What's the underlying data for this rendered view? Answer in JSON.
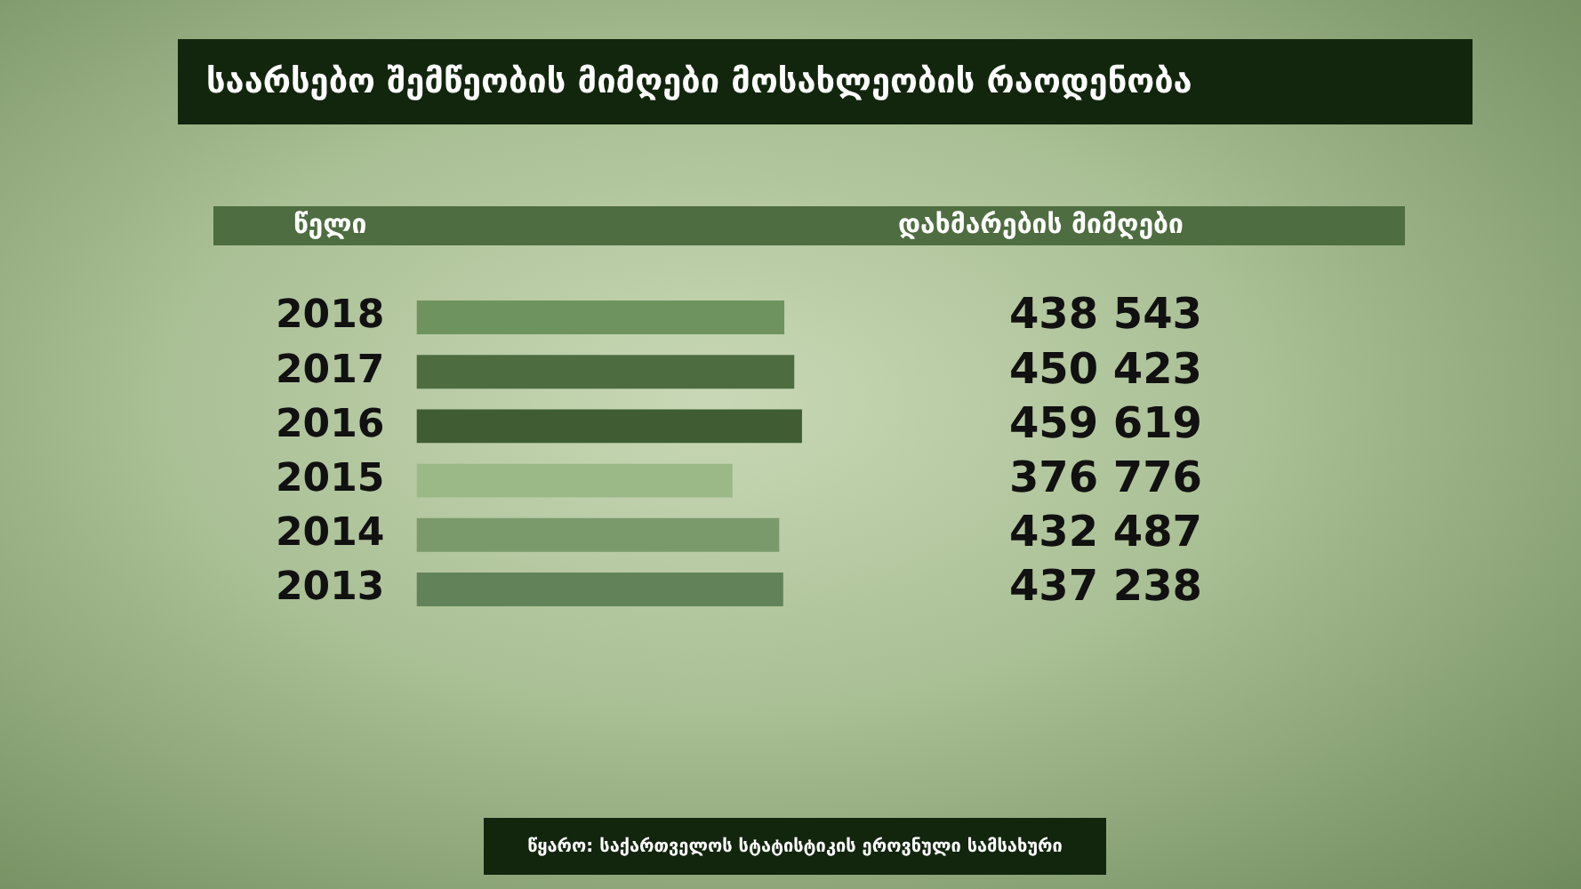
{
  "chart_data": {
    "type": "bar",
    "orientation": "horizontal",
    "title": "საარსებო შემწეობის მიმღები მოსახლეობის რაოდენობა",
    "ylabel": "წელი",
    "xlabel": "დახმარების მიმღები",
    "categories": [
      "2018",
      "2017",
      "2016",
      "2015",
      "2014",
      "2013"
    ],
    "values": [
      438543,
      450423,
      459619,
      376776,
      432487,
      437238
    ],
    "value_labels": [
      "438 543",
      "450 423",
      "459 619",
      "376 776",
      "432 487",
      "437 238"
    ],
    "colors": [
      "#6f935f",
      "#4d6d40",
      "#3f5c33",
      "#9bb987",
      "#7b9a6c",
      "#62835a"
    ],
    "annotations": [
      "წყარო: საქართველოს სტატისტიკის ეროვნული სამსახური"
    ]
  }
}
